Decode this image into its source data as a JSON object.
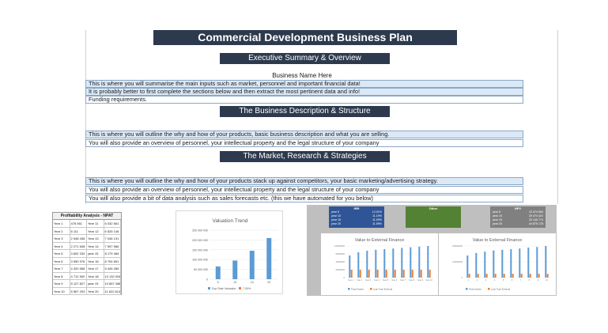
{
  "colors": {
    "header_bg": "#2d3a4e",
    "row_fill": "#dbe8f6",
    "row_border": "#8aa8c8",
    "bar_blue": "#5b9bd5",
    "bar_orange": "#ed7d31",
    "green": "#548235",
    "grey": "#808080",
    "navy": "#2f5597"
  },
  "title": "Commercial Development Business Plan",
  "executive": {
    "heading": "Executive Summary & Overview",
    "business_name": "Business Name Here",
    "lines": [
      "This is where you will summarise the main inputs such as market, personnel and important financial data!",
      "It is probably better to first complete the sections below and then extract the most pertinent data and info!",
      "Funding requirements."
    ]
  },
  "business": {
    "heading": "The Business Description & Structure",
    "lines": [
      "This is where you will outline the why and how of your products, basic business description and what you are selling.",
      "You will also provide an overview of personnel, your intellectual property and the legal structure of your company"
    ]
  },
  "market": {
    "heading": "The Market, Research & Strategies",
    "lines": [
      "This is where you will outline the why and how of your products stack up against competitors, your basic marketing/advertising strategy.",
      "You will also provide an overview of personnel, your intellectual property and the legal structure of your company",
      "You will also provide a bit of data analysis such as sales forecasts etc. (this we have automated for you below)"
    ]
  },
  "npat": {
    "title": "Profitability Analysis - NPAT",
    "rows": [
      [
        "Year 1",
        "475 061",
        "Year 11",
        "6 032 661"
      ],
      [
        "Year 2",
        "6 111",
        "Year 12",
        "6 525 146"
      ],
      [
        "Year 3",
        "2 548 436",
        "Year 13",
        "7 046 131"
      ],
      [
        "Year 4",
        "2 271 608",
        "Year 14",
        "7 597 566"
      ],
      [
        "Year 5",
        "3 602 333",
        "year 15",
        "8 179 484"
      ],
      [
        "Year 6",
        "3 950 976",
        "Year 16",
        "8 794 891"
      ],
      [
        "Year 7",
        "4 320 968",
        "Year 17",
        "9 445 289"
      ],
      [
        "Year 8",
        "4 712 500",
        "Year 18",
        "10 132 004"
      ],
      [
        "Year 9",
        "5 127 827",
        "year 19",
        "10 857 288"
      ],
      [
        "Year 10",
        "5 567 293",
        "Year 20",
        "11 622 814"
      ]
    ]
  },
  "chart_data": [
    {
      "type": "bar",
      "title": "Valuation Trend",
      "categories": [
        "5",
        "10",
        "15",
        "20"
      ],
      "series": [
        {
          "name": "Exp Rate Valuation",
          "values": [
            65000000,
            95000000,
            145000000,
            210000000
          ]
        },
        {
          "name": "7.00%",
          "values": [
            0,
            0,
            0,
            0
          ]
        }
      ],
      "y_ticks": [
        "250 000 000",
        "200 000 000",
        "150 000 000",
        "100 000 000",
        "50 000 000",
        "0"
      ],
      "ylim": [
        0,
        250000000
      ],
      "legend_position": "bottom"
    },
    {
      "type": "bar",
      "title": "Value to External Finance",
      "categories": [
        "Year 1",
        "Year 2",
        "Year 3",
        "Year 4",
        "Year 5",
        "Year 6",
        "Year 7",
        "Year 8",
        "Year 9",
        "Year 10"
      ],
      "series": [
        {
          "name": "Fixed Assets",
          "values": [
            70,
            80,
            85,
            88,
            90,
            92,
            94,
            96,
            98,
            100
          ]
        },
        {
          "name": "Loan Type External",
          "values": [
            25,
            25,
            25,
            25,
            25,
            25,
            25,
            25,
            25,
            25
          ]
        }
      ],
      "y_ticks": [
        "100000000",
        "60000000",
        "40000000",
        "20000000",
        "0"
      ],
      "legend_position": "bottom"
    },
    {
      "type": "bar",
      "title": "Value to External Finance",
      "categories": [
        "1",
        "2",
        "3",
        "4",
        "5",
        "6",
        "7",
        "8",
        "9",
        "10"
      ],
      "series": [
        {
          "name": "Fixed Assets",
          "values": [
            70,
            78,
            82,
            86,
            88,
            90,
            92,
            95,
            97,
            100
          ]
        },
        {
          "name": "Loan Type External",
          "values": [
            12,
            12,
            12,
            12,
            12,
            12,
            12,
            12,
            12,
            12
          ]
        }
      ],
      "y_ticks": [
        "200000000",
        "100000000",
        "0"
      ],
      "legend_position": "bottom"
    }
  ],
  "kpi_panels": {
    "irr": {
      "title": "IRR",
      "rows": [
        [
          "year 5",
          "12.01%"
        ],
        [
          "year 10",
          "11.19%"
        ],
        [
          "year 15",
          "11.09%"
        ],
        [
          "year 20",
          "11.59%"
        ]
      ]
    },
    "other": {
      "title": "Other"
    },
    "npv": {
      "title": "NPV",
      "rows": [
        [
          "year 5",
          "13 474 654"
        ],
        [
          "year 10",
          "25 474 421"
        ],
        [
          "year 15",
          "32 145 774"
        ],
        [
          "year 20",
          "44 875 178"
        ]
      ]
    }
  }
}
